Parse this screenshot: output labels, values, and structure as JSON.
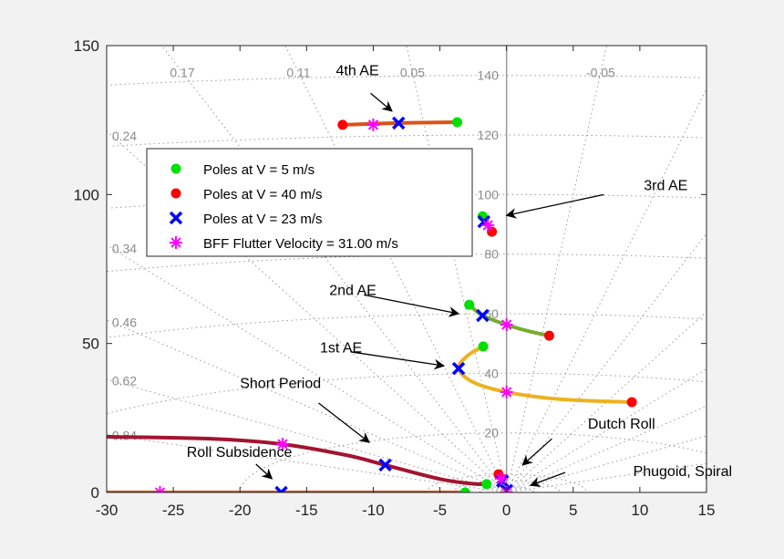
{
  "chart_data": {
    "type": "scatter",
    "title": "",
    "xlabel": "",
    "ylabel": "",
    "xlim": [
      -30,
      15
    ],
    "ylim": [
      0,
      150
    ],
    "xticks": [
      -30,
      -25,
      -20,
      -15,
      -10,
      -5,
      0,
      5,
      10,
      15
    ],
    "yticks": [
      0,
      50,
      100,
      150
    ],
    "grid": "s-plane damping/frequency grid (dotted)",
    "legend_placement": "upper-left",
    "legend": [
      {
        "label": "Poles at V = 5 m/s",
        "marker": "dot",
        "color": "#00e000"
      },
      {
        "label": "Poles at V = 40 m/s",
        "marker": "dot",
        "color": "#ff0000"
      },
      {
        "label": "Poles at V = 23 m/s",
        "marker": "x",
        "color": "#0000ff"
      },
      {
        "label": "BFF Flutter Velocity = 31.00 m/s",
        "marker": "asterisk",
        "color": "#ff00ff"
      }
    ],
    "damping_labels": [
      {
        "zeta": 0.84,
        "text": "0.84"
      },
      {
        "zeta": 0.62,
        "text": "0.62"
      },
      {
        "zeta": 0.46,
        "text": "0.46"
      },
      {
        "zeta": 0.34,
        "text": "0.34"
      },
      {
        "zeta": 0.24,
        "text": "0.24"
      },
      {
        "zeta": 0.17,
        "text": "0.17"
      },
      {
        "zeta": 0.11,
        "text": "0.11"
      },
      {
        "zeta": 0.05,
        "text": "0.05"
      },
      {
        "zeta": -0.05,
        "text": "-0.05"
      }
    ],
    "frequency_labels": [
      20,
      40,
      60,
      80,
      100,
      120,
      140
    ],
    "branches": [
      {
        "mode": "4th AE",
        "color": "#d95319",
        "path": [
          [
            -12.3,
            123.4
          ],
          [
            -8.1,
            124
          ],
          [
            -3.7,
            124.3
          ]
        ],
        "v5": [
          -3.7,
          124.3
        ],
        "v40": [
          -12.3,
          123.4
        ],
        "v23": [
          -8.1,
          124
        ],
        "flutter": [
          -10.0,
          123.4
        ]
      },
      {
        "mode": "3rd AE",
        "color": "#7e2f8e",
        "path": [
          [
            -1.8,
            92.7
          ],
          [
            -1.7,
            90.9
          ],
          [
            -1.4,
            89.7
          ],
          [
            -1.1,
            87.5
          ]
        ],
        "v5": [
          -1.8,
          92.7
        ],
        "v40": [
          -1.1,
          87.5
        ],
        "v23": [
          -1.7,
          90.9
        ],
        "flutter": [
          -1.4,
          89.7
        ]
      },
      {
        "mode": "2nd AE",
        "color": "#77ac30",
        "path": [
          [
            -2.8,
            63
          ],
          [
            -1.8,
            59.4
          ],
          [
            0,
            56.3
          ],
          [
            1.6,
            54.2
          ],
          [
            3.2,
            52.6
          ]
        ],
        "v5": [
          -2.8,
          63
        ],
        "v40": [
          3.2,
          52.6
        ],
        "v23": [
          -1.8,
          59.4
        ],
        "flutter": [
          0,
          56.3
        ]
      },
      {
        "mode": "1st AE",
        "color": "#edb120",
        "path": [
          [
            -1.75,
            49
          ],
          [
            -2.9,
            46
          ],
          [
            -3.6,
            41.6
          ],
          [
            -2.5,
            37
          ],
          [
            0,
            33.7
          ],
          [
            4,
            31.3
          ],
          [
            9.4,
            30.3
          ]
        ],
        "v5": [
          -1.75,
          49
        ],
        "v40": [
          9.4,
          30.3
        ],
        "v23": [
          -3.6,
          41.6
        ],
        "flutter": [
          0,
          33.7
        ]
      },
      {
        "mode": "Short Period",
        "color": "#a2142f",
        "path": [
          [
            -30,
            18.7
          ],
          [
            -22,
            18
          ],
          [
            -16.8,
            16.2
          ],
          [
            -12,
            12.5
          ],
          [
            -9.1,
            9.2
          ],
          [
            -5,
            4.5
          ],
          [
            -2.5,
            2.9
          ],
          [
            -1.5,
            2.8
          ]
        ],
        "v5": [
          -1.5,
          2.8
        ],
        "v23": [
          -9.1,
          9.2
        ],
        "flutter": [
          -16.8,
          16.2
        ]
      },
      {
        "mode": "Roll Subsidence",
        "color": "#d95319",
        "path": [
          [
            -30,
            0
          ],
          [
            -3.1,
            0
          ]
        ],
        "v5": [
          -3.1,
          0
        ],
        "v23": [
          -16.9,
          0
        ],
        "flutter": [
          -26.0,
          0
        ]
      },
      {
        "mode": "Dutch Roll",
        "color": "#0072bd",
        "path": [
          [
            -0.6,
            6.1
          ],
          [
            -0.4,
            4.6
          ],
          [
            -0.3,
            3.8
          ]
        ],
        "v40": [
          -0.6,
          6.1
        ],
        "flutter": [
          -0.4,
          4.6
        ],
        "v23": [
          -0.3,
          3.8
        ]
      },
      {
        "mode": "Phugoid, Spiral",
        "color": "#0072bd",
        "path": [
          [
            0,
            0.6
          ],
          [
            0,
            0
          ]
        ],
        "v23": [
          0,
          0.6
        ],
        "flutter": [
          0,
          0
        ]
      }
    ],
    "annotations": [
      {
        "text": "4th AE",
        "text_at": [
          -12.8,
          140
        ],
        "arrow_from": [
          -10.2,
          134
        ],
        "arrow_to": [
          -8.6,
          128
        ]
      },
      {
        "text": "3rd AE",
        "text_at": [
          10.3,
          101.5
        ],
        "arrow_from": [
          7.3,
          100
        ],
        "arrow_to": [
          0,
          93
        ]
      },
      {
        "text": "2nd AE",
        "text_at": [
          -13.3,
          66.3
        ],
        "arrow_from": [
          -10.7,
          66.3
        ],
        "arrow_to": [
          -3.6,
          60
        ]
      },
      {
        "text": "1st AE",
        "text_at": [
          -14,
          47
        ],
        "arrow_from": [
          -11.7,
          47.2
        ],
        "arrow_to": [
          -4.7,
          42.5
        ]
      },
      {
        "text": "Short Period",
        "text_at": [
          -20,
          35
        ],
        "arrow_from": [
          -14.1,
          30
        ],
        "arrow_to": [
          -10.3,
          16.8
        ]
      },
      {
        "text": "Roll Subsidence",
        "text_at": [
          -24,
          12
        ],
        "arrow_from": [
          -18.8,
          9.5
        ],
        "arrow_to": [
          -17.6,
          4.6
        ]
      },
      {
        "text": "Dutch Roll",
        "text_at": [
          6.1,
          21.5
        ],
        "arrow_from": [
          3.4,
          18
        ],
        "arrow_to": [
          1.2,
          9.2
        ]
      },
      {
        "text": "Phugoid, Spiral",
        "text_at": [
          9.5,
          5.5
        ],
        "arrow_from": [
          4.4,
          6.7
        ],
        "arrow_to": [
          1.8,
          2.4
        ]
      }
    ]
  }
}
